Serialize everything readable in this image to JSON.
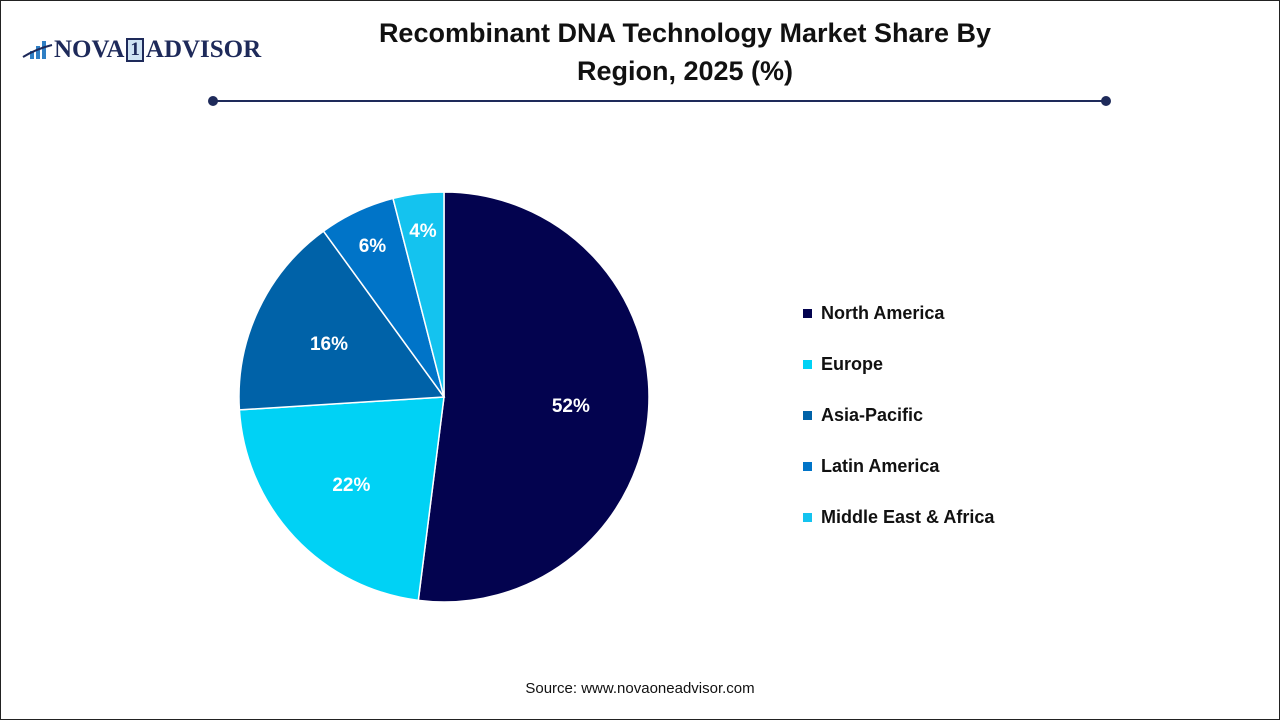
{
  "logo": {
    "text_left": "NOVA",
    "text_num": "1",
    "text_right": "ADVISOR"
  },
  "chart_data": {
    "type": "pie",
    "title": "Recombinant DNA Technology Market Share By Region, 2025 (%)",
    "legend_position": "right",
    "slices": [
      {
        "label": "North America",
        "value": 52,
        "data_label": "52%",
        "color": "#03034f"
      },
      {
        "label": "Europe",
        "value": 22,
        "data_label": "22%",
        "color": "#00d2f5"
      },
      {
        "label": "Asia-Pacific",
        "value": 16,
        "data_label": "16%",
        "color": "#0062a8"
      },
      {
        "label": "Latin America",
        "value": 6,
        "data_label": "6%",
        "color": "#0074c8"
      },
      {
        "label": "Middle East & Africa",
        "value": 4,
        "data_label": "4%",
        "color": "#14c3ef"
      }
    ]
  },
  "source": "Source: www.novaoneadvisor.com"
}
